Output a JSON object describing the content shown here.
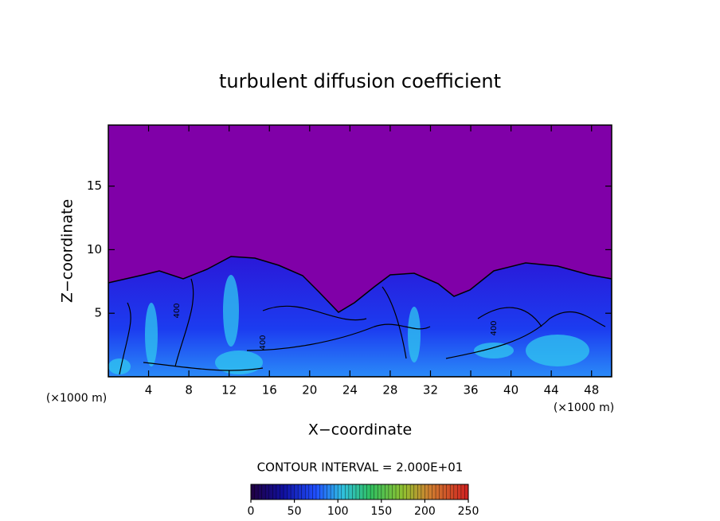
{
  "chart_data": {
    "type": "contour",
    "title": "turbulent diffusion coefficient",
    "x_label": "X−coordinate",
    "y_label": "Z−coordinate",
    "x_unit": "(×1000 m)",
    "y_unit": "(×1000 m)",
    "xlim": [
      0,
      50
    ],
    "xticks": [
      4,
      8,
      12,
      16,
      20,
      24,
      28,
      32,
      36,
      40,
      44,
      48
    ],
    "ylim": [
      0,
      19.8
    ],
    "yticks": [
      5,
      10,
      15
    ],
    "contour_labels": [
      "400",
      "400",
      "400"
    ],
    "contour_interval": "CONTOUR INTERVAL = 2.000E+01",
    "colorbar": {
      "lim": [
        0,
        250
      ],
      "ticks": [
        0,
        50,
        100,
        150,
        200,
        250
      ]
    }
  }
}
